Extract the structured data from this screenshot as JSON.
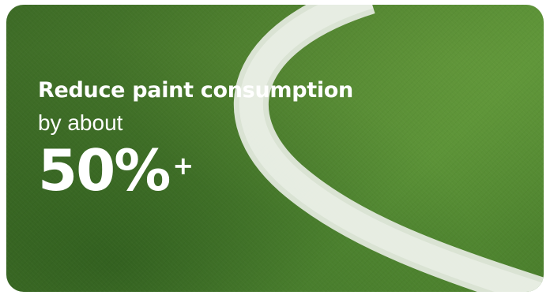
{
  "card": {
    "headline": "Reduce paint consumption",
    "subline": "by about",
    "stat_value": "50%",
    "stat_suffix": "+"
  },
  "colors": {
    "text": "#ffffff",
    "turf": "#4b7d2d",
    "field_line": "#e8ece4"
  }
}
